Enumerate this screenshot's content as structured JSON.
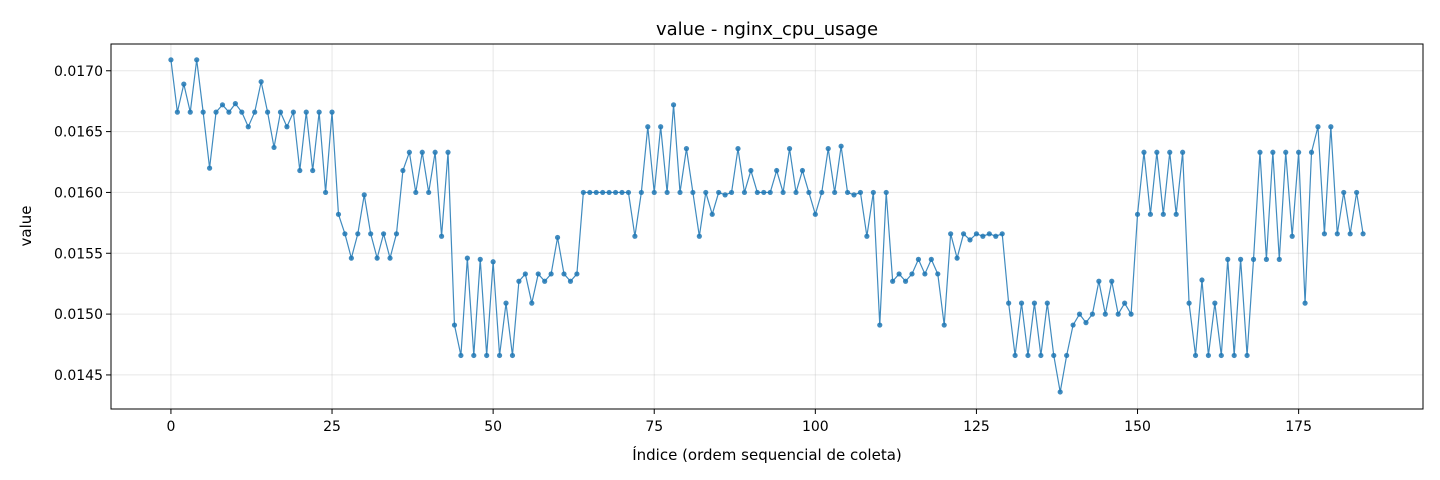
{
  "chart_data": {
    "type": "line",
    "title": "value - nginx_cpu_usage",
    "xlabel": "Índice (ordem sequencial de coleta)",
    "ylabel": "value",
    "xlim": [
      -9.3,
      194.3
    ],
    "ylim": [
      0.01422,
      0.01722
    ],
    "xticks": [
      0,
      25,
      50,
      75,
      100,
      125,
      150,
      175
    ],
    "xtick_labels": [
      "0",
      "25",
      "50",
      "75",
      "100",
      "125",
      "150",
      "175"
    ],
    "yticks": [
      0.0145,
      0.015,
      0.0155,
      0.016,
      0.0165,
      0.017
    ],
    "ytick_labels": [
      "0.0145",
      "0.0150",
      "0.0155",
      "0.0160",
      "0.0165",
      "0.0170"
    ],
    "grid": true,
    "series": [
      {
        "color": "#1f77b4",
        "marker": "circle",
        "values": [
          0.01709,
          0.01666,
          0.01689,
          0.01666,
          0.01709,
          0.01666,
          0.0162,
          0.01666,
          0.01672,
          0.01666,
          0.01673,
          0.01666,
          0.01654,
          0.01666,
          0.01691,
          0.01666,
          0.01637,
          0.01666,
          0.01654,
          0.01666,
          0.01618,
          0.01666,
          0.01618,
          0.01666,
          0.016,
          0.01666,
          0.01582,
          0.01566,
          0.01546,
          0.01566,
          0.01598,
          0.01566,
          0.01546,
          0.01566,
          0.01546,
          0.01566,
          0.01618,
          0.01633,
          0.016,
          0.01633,
          0.016,
          0.01633,
          0.01564,
          0.01633,
          0.01491,
          0.01466,
          0.01546,
          0.01466,
          0.01545,
          0.01466,
          0.01543,
          0.01466,
          0.01509,
          0.01466,
          0.01527,
          0.01533,
          0.01509,
          0.01533,
          0.01527,
          0.01533,
          0.01563,
          0.01533,
          0.01527,
          0.01533,
          0.016,
          0.016,
          0.016,
          0.016,
          0.016,
          0.016,
          0.016,
          0.016,
          0.01564,
          0.016,
          0.01654,
          0.016,
          0.01654,
          0.016,
          0.01672,
          0.016,
          0.01636,
          0.016,
          0.01564,
          0.016,
          0.01582,
          0.016,
          0.01598,
          0.016,
          0.01636,
          0.016,
          0.01618,
          0.016,
          0.016,
          0.016,
          0.01618,
          0.016,
          0.01636,
          0.016,
          0.01618,
          0.016,
          0.01582,
          0.016,
          0.01636,
          0.016,
          0.01638,
          0.016,
          0.01598,
          0.016,
          0.01564,
          0.016,
          0.01491,
          0.016,
          0.01527,
          0.01533,
          0.01527,
          0.01533,
          0.01545,
          0.01533,
          0.01545,
          0.01533,
          0.01491,
          0.01566,
          0.01546,
          0.01566,
          0.01561,
          0.01566,
          0.01564,
          0.01566,
          0.01564,
          0.01566,
          0.01509,
          0.01466,
          0.01509,
          0.01466,
          0.01509,
          0.01466,
          0.01509,
          0.01466,
          0.01436,
          0.01466,
          0.01491,
          0.015,
          0.01493,
          0.015,
          0.01527,
          0.015,
          0.01527,
          0.015,
          0.01509,
          0.015,
          0.01582,
          0.01633,
          0.01582,
          0.01633,
          0.01582,
          0.01633,
          0.01582,
          0.01633,
          0.01509,
          0.01466,
          0.01528,
          0.01466,
          0.01509,
          0.01466,
          0.01545,
          0.01466,
          0.01545,
          0.01466,
          0.01545,
          0.01633,
          0.01545,
          0.01633,
          0.01545,
          0.01633,
          0.01564,
          0.01633,
          0.01509,
          0.01633,
          0.01654,
          0.01566,
          0.01654,
          0.01566,
          0.016,
          0.01566,
          0.016,
          0.01566
        ]
      }
    ]
  }
}
